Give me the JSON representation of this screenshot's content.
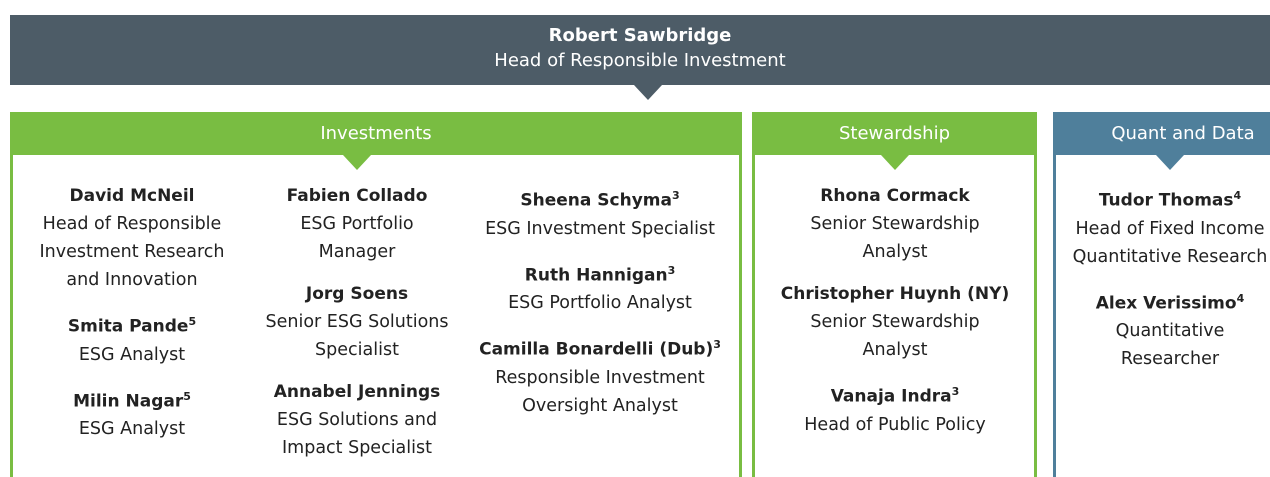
{
  "header": {
    "name": "Robert Sawbridge",
    "title": "Head of Responsible Investment"
  },
  "sections": [
    {
      "title": "Investments",
      "color": "#79bd42",
      "columns": [
        [
          {
            "name": "David McNeil",
            "role": [
              "Head of Responsible",
              "Investment Research",
              "and Innovation"
            ]
          },
          {
            "name": "Smita Pande",
            "note": "5",
            "role": [
              "ESG Analyst"
            ]
          },
          {
            "name": "Milin Nagar",
            "note": "5",
            "role": [
              "ESG Analyst"
            ]
          }
        ],
        [
          {
            "name": "Fabien Collado",
            "role": [
              "ESG Portfolio",
              "Manager"
            ]
          },
          {
            "name": "Jorg Soens",
            "role": [
              "Senior ESG Solutions",
              "Specialist"
            ]
          },
          {
            "name": "Annabel Jennings",
            "role": [
              "ESG Solutions and",
              "Impact Specialist"
            ]
          }
        ],
        [
          {
            "name": "Sheena Schyma",
            "note": "3",
            "role": [
              "ESG Investment Specialist"
            ]
          },
          {
            "name": "Ruth Hannigan",
            "note": "3",
            "role": [
              "ESG Portfolio Analyst"
            ]
          },
          {
            "name": "Camilla Bonardelli (Dub)",
            "note": "3",
            "role": [
              "Responsible Investment",
              "Oversight Analyst"
            ]
          }
        ]
      ]
    },
    {
      "title": "Stewardship",
      "color": "#79bd42",
      "columns": [
        [
          {
            "name": "Rhona Cormack",
            "role": [
              "Senior Stewardship",
              "Analyst"
            ]
          },
          {
            "name": "Christopher Huynh (NY)",
            "role": [
              "Senior Stewardship",
              "Analyst"
            ]
          },
          {
            "name": "Vanaja Indra",
            "note": "3",
            "role": [
              "Head of Public Policy"
            ]
          }
        ]
      ]
    },
    {
      "title": "Quant and Data",
      "color": "#4f7f9b",
      "columns": [
        [
          {
            "name": "Tudor Thomas",
            "note": "4",
            "role": [
              "Head of Fixed Income",
              "Quantitative Research"
            ]
          },
          {
            "name": "Alex Verissimo",
            "note": "4",
            "role": [
              "Quantitative",
              "Researcher"
            ]
          }
        ]
      ]
    }
  ]
}
